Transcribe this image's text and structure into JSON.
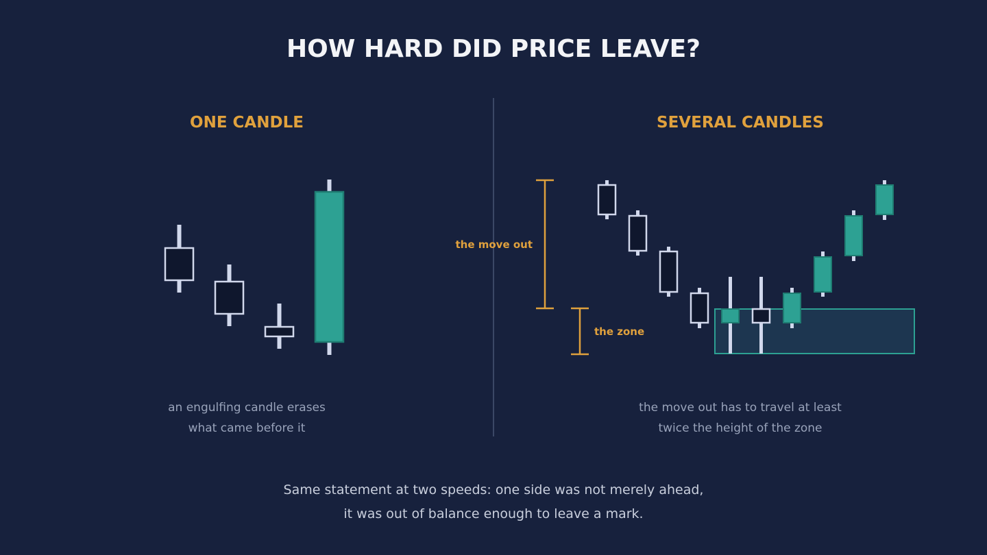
{
  "title": "HOW HARD DID PRICE LEAVE?",
  "left_panel": {
    "heading": "ONE CANDLE",
    "caption_line1": "an engulfing candle erases",
    "caption_line2": "what came before it"
  },
  "right_panel": {
    "heading": "SEVERAL CANDLES",
    "annotation_move_out": "the move out",
    "annotation_zone": "the zone",
    "caption_line1": "the move out has to travel at least",
    "caption_line2": "twice the height of the zone"
  },
  "footer": {
    "line1": "Same statement at two speeds: one side was not merely ahead,",
    "line2": "it was out of balance enough to leave a mark."
  },
  "colors": {
    "background": "#17213d",
    "bullish": "#2da193",
    "bearish_fill": "#0f172d",
    "candle_outline": "#d1d8ec",
    "accent": "#e0a13d",
    "zone_fill": "#1d3650",
    "zone_border": "#2da193",
    "divider": "#3b4866"
  }
}
